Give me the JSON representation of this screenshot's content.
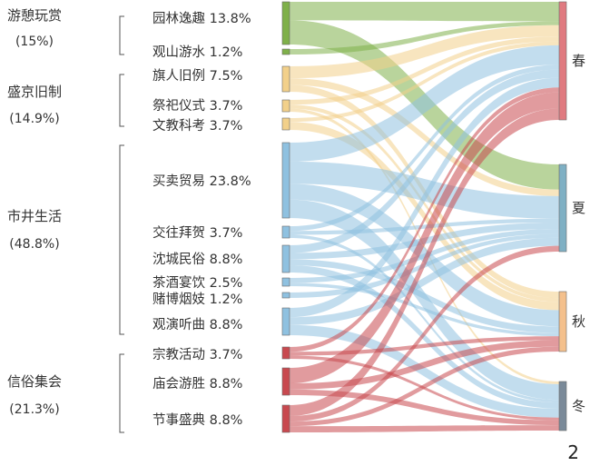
{
  "groups": [
    {
      "name": "游憩玩赏",
      "pct": "(15%)"
    },
    {
      "name": "盛京旧制",
      "pct": "(14.9%)"
    },
    {
      "name": "市井生活",
      "pct": "(48.8%)"
    },
    {
      "name": "信俗集会",
      "pct": "(21.3%)"
    }
  ],
  "categories": [
    {
      "label": "园林逸趣 13.8%",
      "value": 13.8,
      "group": 0,
      "color": "#7fb04a"
    },
    {
      "label": "观山游水 1.2%",
      "value": 1.2,
      "group": 0,
      "color": "#7fb04a"
    },
    {
      "label": "旗人旧例 7.5%",
      "value": 7.5,
      "group": 1,
      "color": "#f2d08a"
    },
    {
      "label": "祭祀仪式 3.7%",
      "value": 3.7,
      "group": 1,
      "color": "#f2d08a"
    },
    {
      "label": "文教科考 3.7%",
      "value": 3.7,
      "group": 1,
      "color": "#f2d08a"
    },
    {
      "label": "买卖贸易 23.8%",
      "value": 23.8,
      "group": 2,
      "color": "#8fc1e0"
    },
    {
      "label": "交往拜贺 3.7%",
      "value": 3.7,
      "group": 2,
      "color": "#8fc1e0"
    },
    {
      "label": "沈城民俗 8.8%",
      "value": 8.8,
      "group": 2,
      "color": "#8fc1e0"
    },
    {
      "label": "茶酒宴饮 2.5%",
      "value": 2.5,
      "group": 2,
      "color": "#8fc1e0"
    },
    {
      "label": "赌博烟妓 1.2%",
      "value": 1.2,
      "group": 2,
      "color": "#8fc1e0"
    },
    {
      "label": "观演听曲 8.8%",
      "value": 8.8,
      "group": 2,
      "color": "#8fc1e0"
    },
    {
      "label": "宗教活动 3.7%",
      "value": 3.7,
      "group": 3,
      "color": "#c8494f"
    },
    {
      "label": "庙会游胜 8.8%",
      "value": 8.8,
      "group": 3,
      "color": "#c8494f"
    },
    {
      "label": "节事盛典 8.8%",
      "value": 8.8,
      "group": 3,
      "color": "#c8494f"
    }
  ],
  "seasons": [
    {
      "label": "春",
      "color": "#e07a80"
    },
    {
      "label": "夏",
      "color": "#7fb0c4"
    },
    {
      "label": "秋",
      "color": "#f4c08c"
    },
    {
      "label": "冬",
      "color": "#7a8a99"
    }
  ],
  "flows": [
    [
      0,
      0,
      6.0
    ],
    [
      0,
      1,
      7.8
    ],
    [
      1,
      0,
      1.2
    ],
    [
      2,
      0,
      3.5
    ],
    [
      2,
      1,
      2.0
    ],
    [
      2,
      2,
      2.0
    ],
    [
      3,
      0,
      1.5
    ],
    [
      3,
      2,
      1.2
    ],
    [
      3,
      3,
      1.0
    ],
    [
      4,
      0,
      1.2
    ],
    [
      4,
      2,
      2.5
    ],
    [
      5,
      0,
      6.0
    ],
    [
      5,
      1,
      7.0
    ],
    [
      5,
      2,
      5.0
    ],
    [
      5,
      3,
      5.8
    ],
    [
      6,
      0,
      1.5
    ],
    [
      6,
      1,
      1.2
    ],
    [
      6,
      3,
      1.0
    ],
    [
      7,
      0,
      2.5
    ],
    [
      7,
      1,
      2.0
    ],
    [
      7,
      2,
      2.0
    ],
    [
      7,
      3,
      2.3
    ],
    [
      8,
      1,
      1.5
    ],
    [
      8,
      2,
      1.0
    ],
    [
      9,
      1,
      1.2
    ],
    [
      10,
      0,
      3.0
    ],
    [
      10,
      1,
      2.5
    ],
    [
      10,
      3,
      3.3
    ],
    [
      11,
      0,
      1.5
    ],
    [
      11,
      2,
      1.2
    ],
    [
      11,
      3,
      1.0
    ],
    [
      12,
      0,
      5.0
    ],
    [
      12,
      2,
      2.0
    ],
    [
      12,
      3,
      1.8
    ],
    [
      13,
      0,
      3.5
    ],
    [
      13,
      1,
      1.8
    ],
    [
      13,
      2,
      1.5
    ],
    [
      13,
      3,
      2.0
    ]
  ],
  "page_number": "2"
}
